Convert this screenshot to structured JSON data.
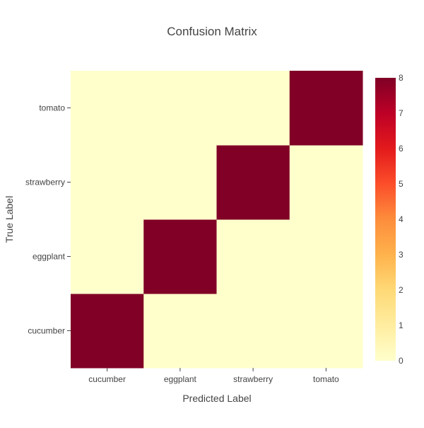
{
  "chart_data": {
    "type": "heatmap",
    "title": "Confusion Matrix",
    "xlabel": "Predicted Label",
    "ylabel": "True Label",
    "x_categories": [
      "cucumber",
      "eggplant",
      "strawberry",
      "tomato"
    ],
    "y_categories": [
      "cucumber",
      "eggplant",
      "strawberry",
      "tomato"
    ],
    "z": [
      [
        8,
        0,
        0,
        0
      ],
      [
        0,
        8,
        0,
        0
      ],
      [
        0,
        0,
        8,
        0
      ],
      [
        0,
        0,
        0,
        8
      ]
    ],
    "zrange": [
      0,
      8
    ],
    "colorscale": "YlOrRd",
    "colorbar_ticks": [
      0,
      1,
      2,
      3,
      4,
      5,
      6,
      7,
      8
    ],
    "grid": false
  }
}
